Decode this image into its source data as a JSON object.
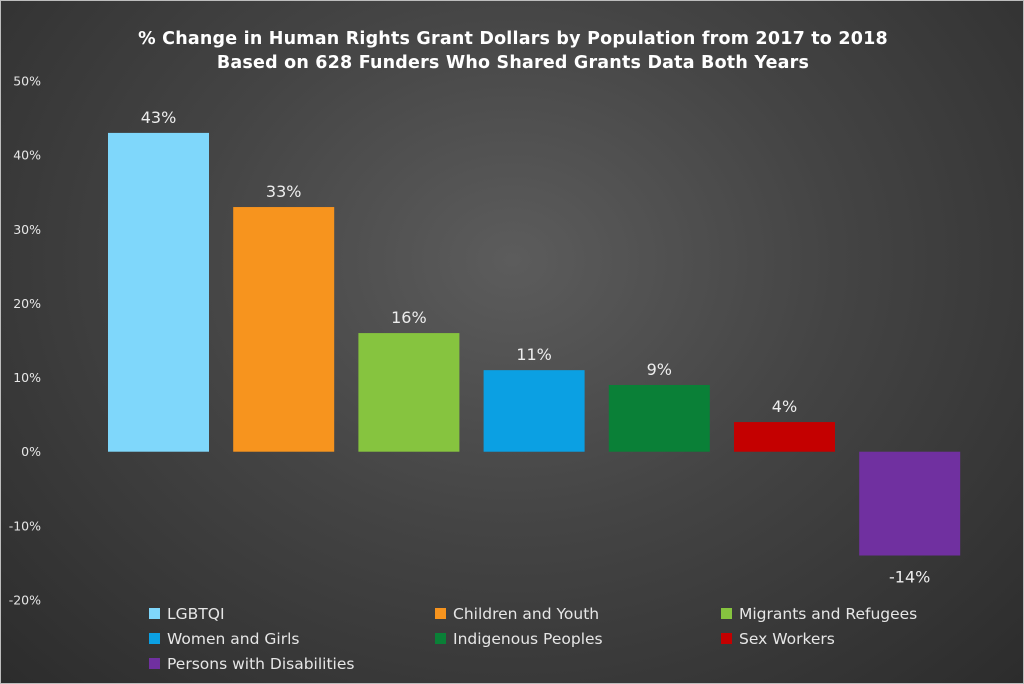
{
  "chart_data": {
    "type": "bar",
    "title": "% Change in Human Rights Grant Dollars by Population from 2017 to 2018",
    "subtitle": "Based on 628 Funders Who Shared Grants Data Both Years",
    "categories": [
      "LGBTQI",
      "Children and Youth",
      "Migrants and Refugees",
      "Women and Girls",
      "Indigenous Peoples",
      "Sex Workers",
      "Persons with Disabilities"
    ],
    "values": [
      43,
      33,
      16,
      11,
      9,
      4,
      -14
    ],
    "data_labels": [
      "43%",
      "33%",
      "16%",
      "11%",
      "9%",
      "4%",
      "-14%"
    ],
    "colors": [
      "#7fd7fb",
      "#f7941e",
      "#86c43f",
      "#0ba0e3",
      "#0a8037",
      "#c40000",
      "#7030a0"
    ],
    "ylim": [
      -20,
      50
    ],
    "yticks": [
      -20,
      -10,
      0,
      10,
      20,
      30,
      40,
      50
    ],
    "ytick_labels": [
      "-20%",
      "-10%",
      "0%",
      "10%",
      "20%",
      "30%",
      "40%",
      "50%"
    ],
    "xlabel": "",
    "ylabel": "",
    "grid": false,
    "legend_position": "bottom"
  }
}
